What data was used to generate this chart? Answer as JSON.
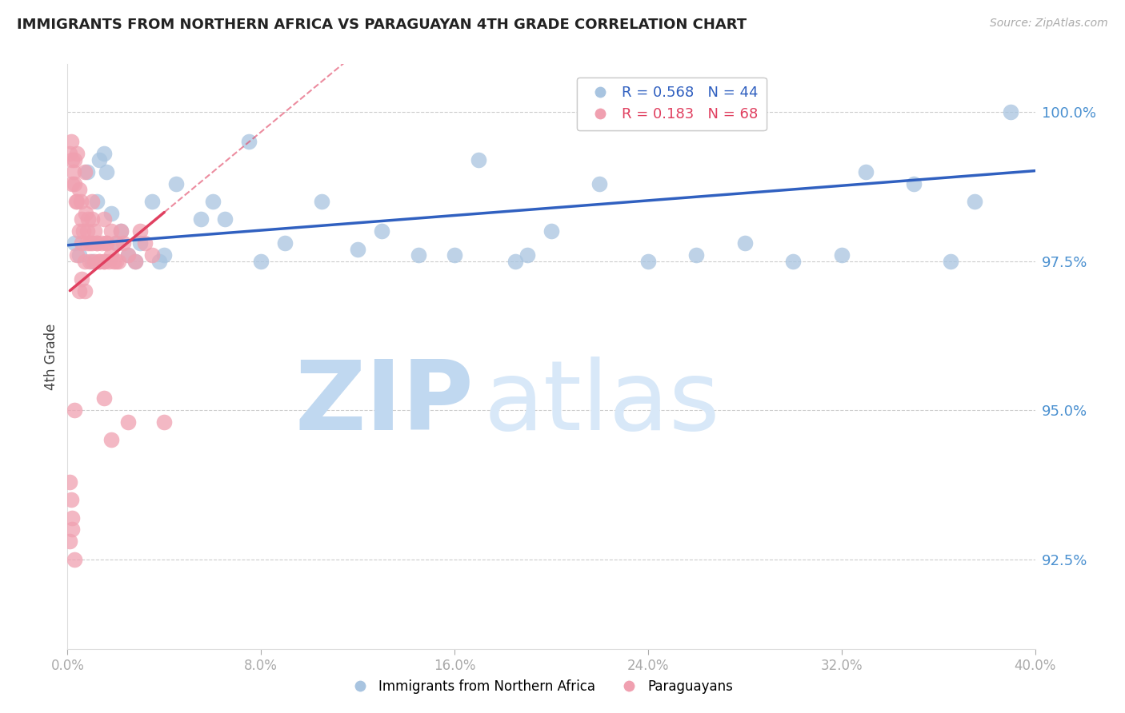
{
  "title": "IMMIGRANTS FROM NORTHERN AFRICA VS PARAGUAYAN 4TH GRADE CORRELATION CHART",
  "source": "Source: ZipAtlas.com",
  "ylabel": "4th Grade",
  "ylabel_right_ticks": [
    92.5,
    95.0,
    97.5,
    100.0
  ],
  "xmin": 0.0,
  "xmax": 40.0,
  "ymin": 91.0,
  "ymax": 100.8,
  "blue_color": "#a8c4e0",
  "pink_color": "#f0a0b0",
  "trendline_blue": "#3060c0",
  "trendline_pink": "#e04060",
  "watermark_zip": "ZIP",
  "watermark_atlas": "atlas",
  "watermark_color_zip": "#c0d8f0",
  "watermark_color_atlas": "#d8e8f8",
  "legend_r_blue": "R = 0.568",
  "legend_n_blue": "N = 44",
  "legend_r_pink": "R = 0.183",
  "legend_n_pink": "N = 68",
  "blue_scatter_x": [
    0.3,
    0.5,
    0.8,
    1.0,
    1.2,
    1.3,
    1.5,
    1.6,
    1.8,
    2.0,
    2.2,
    2.5,
    2.8,
    3.0,
    3.5,
    4.0,
    4.5,
    5.5,
    6.0,
    7.5,
    8.0,
    9.0,
    10.5,
    12.0,
    13.0,
    14.5,
    16.0,
    17.0,
    18.5,
    20.0,
    22.0,
    24.0,
    26.0,
    28.0,
    30.0,
    32.0,
    35.0,
    36.5,
    37.5,
    39.0,
    3.8,
    6.5,
    19.0,
    33.0
  ],
  "blue_scatter_y": [
    97.8,
    97.6,
    99.0,
    97.5,
    98.5,
    99.2,
    99.3,
    99.0,
    98.3,
    97.8,
    98.0,
    97.6,
    97.5,
    97.8,
    98.5,
    97.6,
    98.8,
    98.2,
    98.5,
    99.5,
    97.5,
    97.8,
    98.5,
    97.7,
    98.0,
    97.6,
    97.6,
    99.2,
    97.5,
    98.0,
    98.8,
    97.5,
    97.6,
    97.8,
    97.5,
    97.6,
    98.8,
    97.5,
    98.5,
    100.0,
    97.5,
    98.2,
    97.6,
    99.0
  ],
  "pink_scatter_x": [
    0.1,
    0.15,
    0.2,
    0.25,
    0.3,
    0.35,
    0.4,
    0.5,
    0.55,
    0.6,
    0.65,
    0.7,
    0.75,
    0.8,
    0.85,
    0.9,
    1.0,
    1.0,
    1.1,
    1.2,
    1.3,
    1.4,
    1.5,
    1.5,
    1.6,
    1.7,
    1.8,
    1.9,
    2.0,
    2.1,
    2.2,
    2.3,
    2.5,
    2.8,
    3.0,
    3.2,
    3.5,
    0.2,
    0.3,
    0.4,
    0.5,
    0.6,
    0.7,
    0.8,
    0.9,
    1.0,
    1.1,
    1.2,
    1.3,
    1.5,
    1.6,
    1.8,
    2.0,
    0.1,
    0.2,
    0.3,
    1.5,
    0.15,
    2.5,
    1.8,
    0.5,
    0.6,
    0.7,
    4.0,
    0.1,
    0.2,
    0.3,
    0.4
  ],
  "pink_scatter_y": [
    99.3,
    99.5,
    98.8,
    99.0,
    99.2,
    98.5,
    99.3,
    98.7,
    98.5,
    98.2,
    98.0,
    99.0,
    98.3,
    98.0,
    98.2,
    97.8,
    98.5,
    98.2,
    98.0,
    97.8,
    97.5,
    97.8,
    98.2,
    97.5,
    97.8,
    97.5,
    98.0,
    97.5,
    97.8,
    97.5,
    98.0,
    97.8,
    97.6,
    97.5,
    98.0,
    97.8,
    97.6,
    99.2,
    98.8,
    98.5,
    98.0,
    97.8,
    97.5,
    97.8,
    97.5,
    97.8,
    97.5,
    97.8,
    97.5,
    97.5,
    97.8,
    97.6,
    97.5,
    93.8,
    93.0,
    92.5,
    95.2,
    93.5,
    94.8,
    94.5,
    97.0,
    97.2,
    97.0,
    94.8,
    92.8,
    93.2,
    95.0,
    97.6
  ],
  "xticks": [
    0.0,
    8.0,
    16.0,
    24.0,
    32.0,
    40.0
  ],
  "xticklabels": [
    "0.0%",
    "8.0%",
    "16.0%",
    "24.0%",
    "32.0%",
    "40.0%"
  ]
}
